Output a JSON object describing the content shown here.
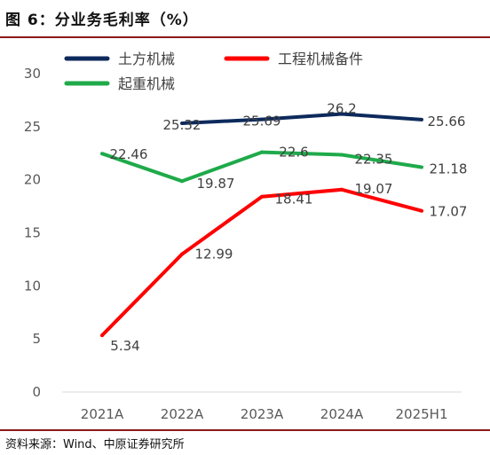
{
  "header": {
    "title": "图 6：分业务毛利率（%）"
  },
  "footer": {
    "source": "资料来源：Wind、中原证券研究所"
  },
  "chart_data": {
    "type": "line",
    "title": "图 6：分业务毛利率（%）",
    "categories": [
      "2021A",
      "2022A",
      "2023A",
      "2024A",
      "2025H1"
    ],
    "ylim": [
      0,
      30
    ],
    "yticks": [
      0,
      5,
      10,
      15,
      20,
      25,
      30
    ],
    "grid": false,
    "legend": "top",
    "series": [
      {
        "name": "土方机械",
        "color": "#0d2a5c",
        "values": [
          null,
          25.32,
          25.69,
          26.2,
          25.66
        ],
        "labels": [
          "",
          "25.32",
          "25.69",
          "26.2",
          "25.66"
        ]
      },
      {
        "name": "工程机械备件",
        "color": "#ff0000",
        "values": [
          5.34,
          12.99,
          18.41,
          19.07,
          17.07
        ],
        "labels": [
          "5.34",
          "12.99",
          "18.41",
          "19.07",
          "17.07"
        ]
      },
      {
        "name": "起重机械",
        "color": "#1faa4a",
        "values": [
          22.46,
          19.87,
          22.6,
          22.35,
          21.18
        ],
        "labels": [
          "22.46",
          "19.87",
          "22.6",
          "22.35",
          "21.18"
        ]
      }
    ]
  }
}
